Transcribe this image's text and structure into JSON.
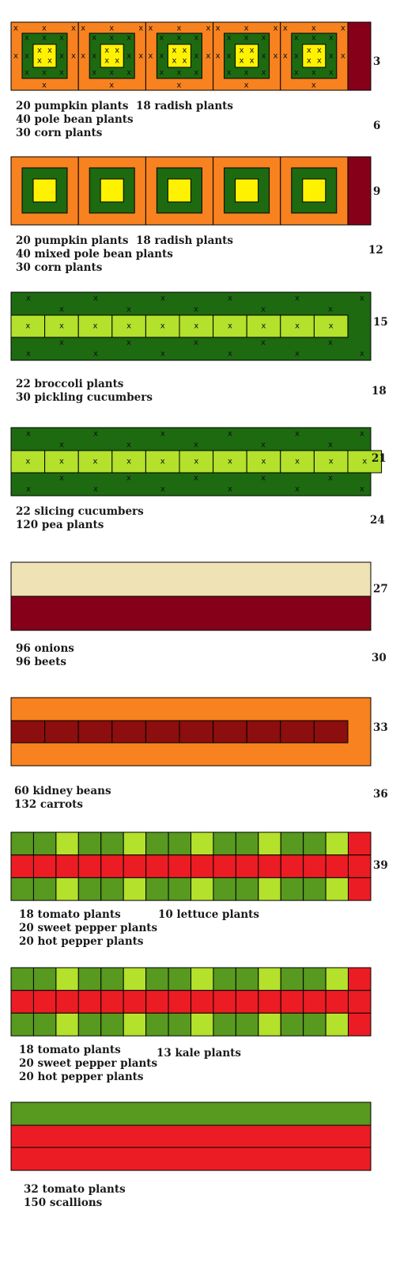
{
  "colors": {
    "orange": "#f7821f",
    "dark_green": "#1d6a11",
    "yellow": "#fff200",
    "maroon": "#86001a",
    "lime": "#b3e12c",
    "cream": "#efe2b4",
    "brick": "#8c0e0e",
    "mid_green": "#58991f",
    "red": "#ec1c24",
    "x_mark": "x"
  },
  "row_numbers": [
    "3",
    "6",
    "9",
    "12",
    "15",
    "18",
    "21",
    "24",
    "27",
    "30",
    "33",
    "36",
    "39"
  ],
  "beds": [
    {
      "id": "bed-1",
      "type": "squares-x",
      "labels": [
        [
          "20 pumpkin plants",
          "40 pole bean plants",
          "30 corn plants"
        ],
        [
          "18 radish plants"
        ]
      ]
    },
    {
      "id": "bed-2",
      "type": "squares",
      "labels": [
        [
          "20 pumpkin plants",
          "40 mixed pole bean plants",
          "30 corn plants"
        ],
        [
          "18 radish plants"
        ]
      ]
    },
    {
      "id": "bed-3",
      "type": "band-x",
      "labels": [
        [
          "22 broccoli plants",
          "30 pickling cucumbers"
        ]
      ]
    },
    {
      "id": "bed-4",
      "type": "band-x",
      "labels": [
        [
          "22 slicing cucumbers",
          "120 pea plants"
        ]
      ]
    },
    {
      "id": "bed-5",
      "type": "two-stripe",
      "labels": [
        [
          "96 onions",
          "96 beets"
        ]
      ]
    },
    {
      "id": "bed-6",
      "type": "carrot",
      "labels": [
        [
          "60 kidney beans",
          "132 carrots"
        ]
      ]
    },
    {
      "id": "bed-7",
      "type": "grid",
      "labels": [
        [
          "18 tomato plants",
          "20 sweet pepper plants",
          "20 hot pepper plants"
        ],
        [
          "10 lettuce plants"
        ]
      ]
    },
    {
      "id": "bed-8",
      "type": "grid",
      "labels": [
        [
          "18 tomato plants",
          "20 sweet pepper plants",
          "20 hot pepper plants"
        ],
        [
          "13 kale plants"
        ]
      ]
    },
    {
      "id": "bed-9",
      "type": "stripes",
      "labels": [
        [
          "32 tomato plants",
          "150 scallions"
        ]
      ]
    }
  ]
}
